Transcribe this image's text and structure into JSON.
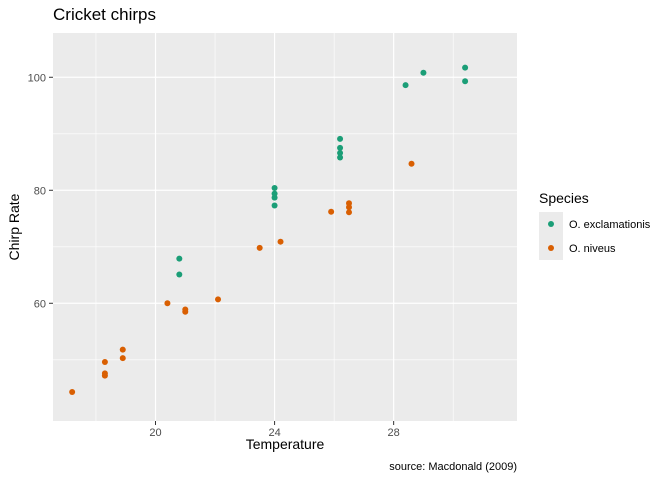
{
  "chart_data": {
    "type": "scatter",
    "title": "Cricket chirps",
    "xlabel": "Temperature",
    "ylabel": "Chirp Rate",
    "caption": "source: Macdonald (2009)",
    "xlim": [
      17.2,
      31.5
    ],
    "ylim": [
      42,
      105
    ],
    "x_ticks": [
      20,
      24,
      28
    ],
    "y_ticks": [
      60,
      80,
      100
    ],
    "grid": true,
    "legend": {
      "title": "Species",
      "position": "right"
    },
    "series": [
      {
        "name": "O. exclamationis",
        "color": "#1b9e77",
        "points": [
          [
            20.8,
            67.9
          ],
          [
            20.8,
            65.1
          ],
          [
            24.0,
            77.3
          ],
          [
            24.0,
            78.7
          ],
          [
            24.0,
            79.4
          ],
          [
            24.0,
            80.4
          ],
          [
            26.2,
            85.8
          ],
          [
            26.2,
            86.6
          ],
          [
            26.2,
            87.5
          ],
          [
            26.2,
            89.1
          ],
          [
            28.4,
            98.6
          ],
          [
            29.0,
            100.8
          ],
          [
            30.4,
            99.3
          ],
          [
            30.4,
            101.7
          ]
        ]
      },
      {
        "name": "O. niveus",
        "color": "#d95f02",
        "points": [
          [
            17.2,
            44.3
          ],
          [
            18.3,
            47.2
          ],
          [
            18.3,
            47.6
          ],
          [
            18.3,
            49.6
          ],
          [
            18.9,
            50.3
          ],
          [
            18.9,
            51.8
          ],
          [
            20.4,
            60.0
          ],
          [
            21.0,
            58.5
          ],
          [
            21.0,
            58.9
          ],
          [
            22.1,
            60.7
          ],
          [
            23.5,
            69.8
          ],
          [
            24.2,
            70.9
          ],
          [
            25.9,
            76.2
          ],
          [
            26.5,
            76.1
          ],
          [
            26.5,
            77.0
          ],
          [
            26.5,
            77.7
          ],
          [
            28.6,
            84.7
          ]
        ]
      }
    ]
  }
}
